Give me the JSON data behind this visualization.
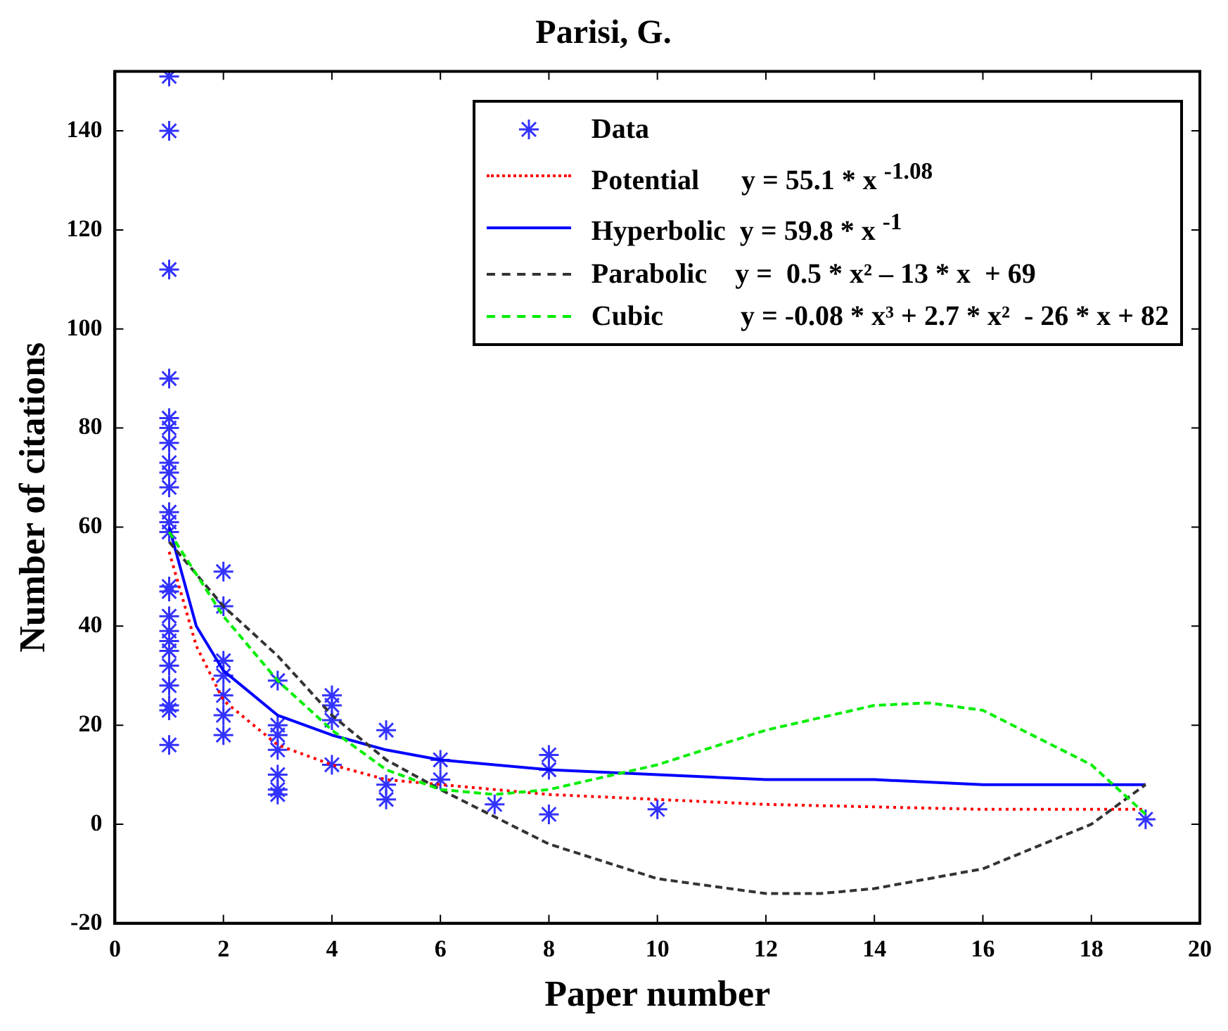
{
  "chart_data": {
    "type": "scatter",
    "title": "Parisi, G.",
    "xlabel": "Paper number",
    "ylabel": "Number of citations",
    "xlim": [
      0,
      20
    ],
    "xticks": [
      0,
      2,
      4,
      6,
      8,
      10,
      12,
      14,
      16,
      18,
      20
    ],
    "ylim": [
      -20,
      152
    ],
    "yticks": [
      -20,
      0,
      20,
      40,
      60,
      80,
      100,
      120,
      140
    ],
    "grid": false,
    "legend": "top right",
    "series": [
      {
        "name": "Data",
        "marker": "cross",
        "color": "#3333ff",
        "x": [
          1,
          1,
          1,
          1,
          1,
          1,
          1,
          1,
          1,
          1,
          1,
          1,
          1,
          1,
          1,
          1,
          1,
          1,
          1,
          1,
          1,
          1,
          1,
          1,
          2,
          2,
          2,
          2,
          2,
          2,
          2,
          3,
          3,
          3,
          3,
          3,
          3,
          3,
          4,
          4,
          4,
          4,
          5,
          5,
          5,
          6,
          6,
          7,
          8,
          8,
          8,
          10,
          19
        ],
        "values": [
          151,
          140,
          112,
          90,
          82,
          80,
          77,
          73,
          71,
          68,
          63,
          61,
          59,
          48,
          47,
          42,
          39,
          37,
          35,
          32,
          28,
          24,
          23,
          16,
          51,
          44,
          33,
          30,
          26,
          22,
          18,
          29,
          20,
          18,
          15,
          10,
          7,
          6,
          26,
          24,
          21,
          12,
          19,
          8,
          5,
          13,
          9,
          4,
          14,
          11,
          2,
          3,
          1
        ]
      },
      {
        "name": "Potential      y = 55.1 * x $^{-1.08}$",
        "type": "line",
        "marker": "none",
        "line_style": "dotted",
        "color": "#ff0000",
        "x": [
          1,
          1.5,
          2,
          3,
          4,
          5,
          6,
          8,
          10,
          12,
          14,
          16,
          19
        ],
        "values": [
          55,
          36,
          25,
          16,
          12,
          9,
          8,
          6,
          5,
          4,
          3.5,
          3,
          3
        ]
      },
      {
        "name": "Hyperbolic  y = 59.8 * x $^{-1}$",
        "type": "line",
        "marker": "none",
        "line_style": "solid",
        "color": "#0000ff",
        "x": [
          1,
          1.5,
          2,
          3,
          4,
          5,
          6,
          8,
          10,
          12,
          14,
          16,
          19
        ],
        "values": [
          60,
          40,
          31,
          22,
          18,
          15,
          13,
          11,
          10,
          9,
          9,
          8,
          8
        ]
      },
      {
        "name": "Parabolic    y =  0.5 * x² – 13 * x  + 69",
        "type": "line",
        "marker": "none",
        "line_style": "dashed",
        "color": "#333333",
        "x": [
          1,
          2,
          3,
          4,
          5,
          6,
          8,
          10,
          12,
          13,
          14,
          16,
          18,
          19
        ],
        "values": [
          57,
          44,
          34,
          22,
          13,
          7,
          -4,
          -11,
          -14,
          -14,
          -13,
          -9,
          0,
          8
        ]
      },
      {
        "name": "Cubic           y = -0.08 * x³ + 2.7 * x²  - 26 * x + 82",
        "type": "line",
        "marker": "none",
        "line_style": "dashed",
        "color": "#00ee00",
        "x": [
          1,
          2,
          3,
          4,
          5,
          6,
          7,
          8,
          10,
          12,
          14,
          15,
          16,
          18,
          19
        ],
        "values": [
          59,
          42,
          29,
          19,
          11,
          7,
          6,
          7,
          12,
          19,
          24,
          24.5,
          23,
          12,
          2
        ]
      }
    ]
  }
}
